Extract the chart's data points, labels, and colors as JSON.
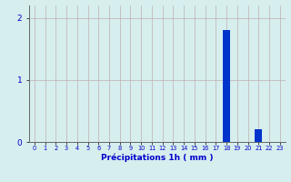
{
  "hours": [
    0,
    1,
    2,
    3,
    4,
    5,
    6,
    7,
    8,
    9,
    10,
    11,
    12,
    13,
    14,
    15,
    16,
    17,
    18,
    19,
    20,
    21,
    22,
    23
  ],
  "values": [
    0,
    0,
    0,
    0,
    0,
    0,
    0,
    0,
    0,
    0,
    0,
    0,
    0,
    0,
    0,
    0,
    0,
    0,
    1.8,
    0,
    0,
    0.2,
    0,
    0
  ],
  "bar_color": "#0033cc",
  "background_color": "#d6eeee",
  "grid_color": "#c0b0b0",
  "xlabel": "Précipitations 1h ( mm )",
  "xlabel_color": "#0000cc",
  "tick_color": "#0000cc",
  "yticks": [
    0,
    1,
    2
  ],
  "ylim": [
    0,
    2.2
  ],
  "xlim": [
    -0.5,
    23.5
  ],
  "axis_color": "#666666"
}
